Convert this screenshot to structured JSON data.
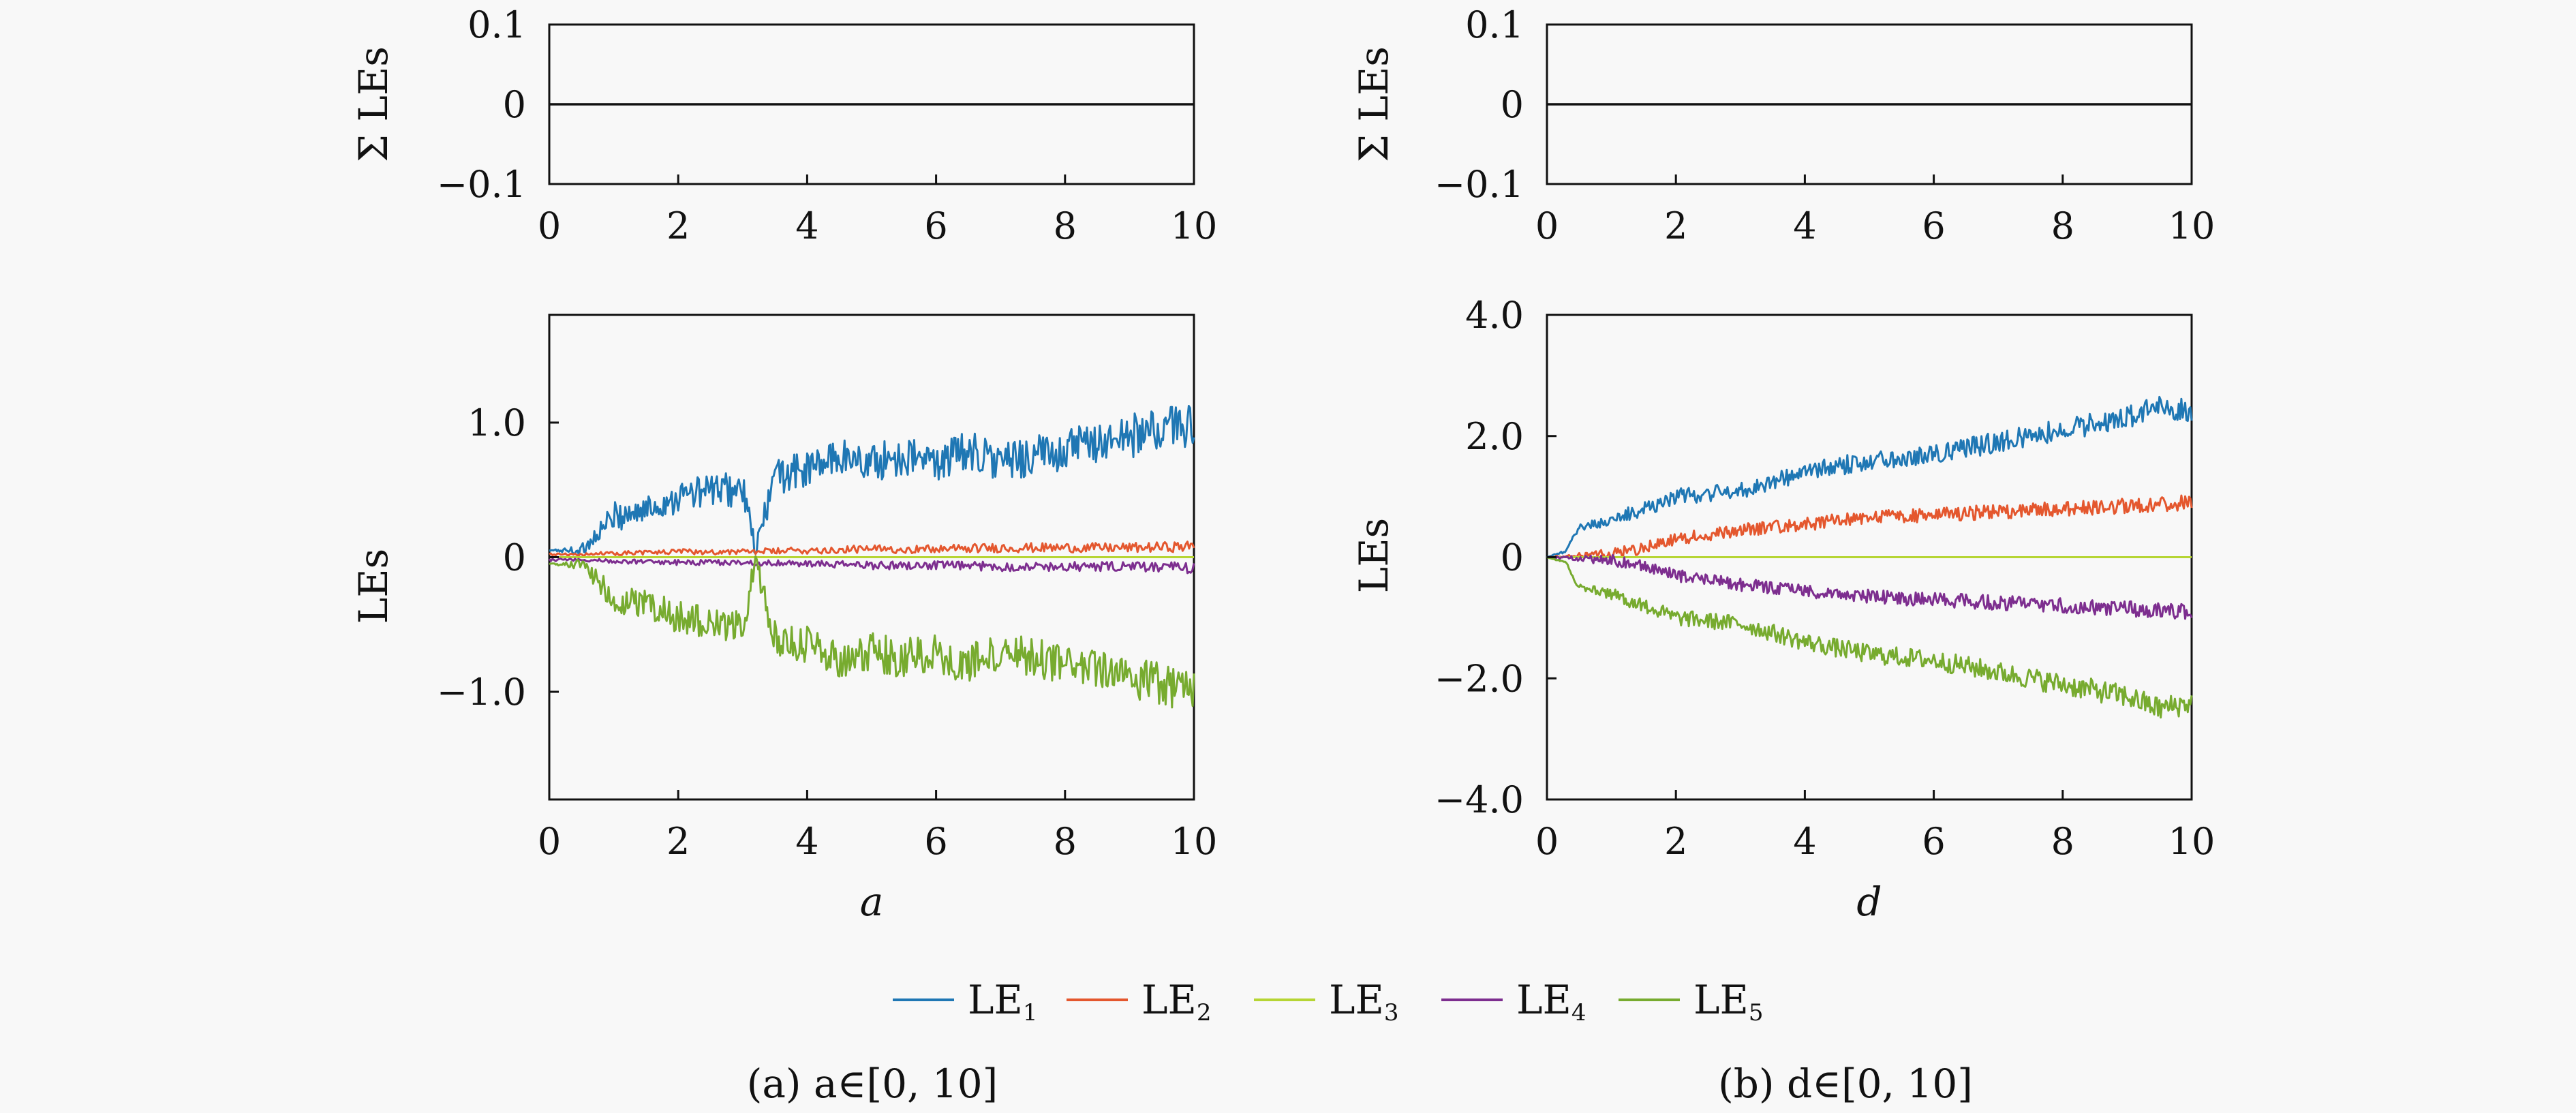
{
  "legend": {
    "items": [
      {
        "label": "LE",
        "sub": "1",
        "color": "#1f77b4"
      },
      {
        "label": "LE",
        "sub": "2",
        "color": "#e4572e"
      },
      {
        "label": "LE",
        "sub": "3",
        "color": "#b6d534"
      },
      {
        "label": "LE",
        "sub": "4",
        "color": "#7d2e8f"
      },
      {
        "label": "LE",
        "sub": "5",
        "color": "#77ab2f"
      }
    ]
  },
  "captions": {
    "a": "(a) a∈[0, 10]",
    "b": "(b) d∈[0, 10]"
  },
  "chart_data": [
    {
      "id": "a-sum",
      "type": "line",
      "ylabel": "Σ LEs",
      "xlabel": "",
      "xlim": [
        0,
        10
      ],
      "ylim": [
        -0.1,
        0.1
      ],
      "xticks": [
        0,
        2,
        4,
        6,
        8,
        10
      ],
      "yticks": [
        0.1,
        0,
        -0.1
      ],
      "ytick_labels": [
        "0.1",
        "0",
        "−0.1"
      ],
      "series": [
        {
          "x": [
            0,
            10
          ],
          "y": [
            0,
            0
          ],
          "color": "#111111"
        }
      ]
    },
    {
      "id": "a-les",
      "type": "line",
      "ylabel": "LEs",
      "xlabel": "a",
      "xlim": [
        0,
        10
      ],
      "ylim": [
        -1.8,
        1.8
      ],
      "xticks": [
        0,
        2,
        4,
        6,
        8,
        10
      ],
      "yticks": [
        1.0,
        0,
        -1.0
      ],
      "ytick_labels": [
        "1.0",
        "0",
        "−1.0"
      ],
      "series": [
        {
          "name": "LE1",
          "color": "#1f77b4",
          "x": [
            0,
            0.5,
            0.6,
            1.0,
            1.5,
            2.0,
            2.5,
            3.0,
            3.2,
            3.5,
            4.0,
            4.5,
            5.0,
            5.5,
            6.0,
            6.5,
            7.0,
            7.5,
            8.0,
            8.5,
            9.0,
            9.5,
            10
          ],
          "y": [
            0.05,
            0.05,
            0.1,
            0.3,
            0.35,
            0.45,
            0.5,
            0.5,
            0.05,
            0.6,
            0.65,
            0.75,
            0.7,
            0.75,
            0.7,
            0.8,
            0.7,
            0.75,
            0.8,
            0.85,
            0.9,
            0.95,
            1.0
          ]
        },
        {
          "name": "LE2",
          "color": "#e4572e",
          "x": [
            0,
            0.5,
            1,
            2,
            3,
            4,
            5,
            6,
            7,
            8,
            9,
            10
          ],
          "y": [
            0.02,
            0.02,
            0.03,
            0.04,
            0.04,
            0.05,
            0.06,
            0.06,
            0.07,
            0.07,
            0.07,
            0.08
          ]
        },
        {
          "name": "LE3",
          "color": "#b6d534",
          "x": [
            0,
            10
          ],
          "y": [
            0,
            0
          ]
        },
        {
          "name": "LE4",
          "color": "#7d2e8f",
          "x": [
            0,
            0.5,
            1,
            2,
            3,
            4,
            5,
            6,
            7,
            8,
            9,
            10
          ],
          "y": [
            -0.02,
            -0.02,
            -0.03,
            -0.04,
            -0.04,
            -0.05,
            -0.06,
            -0.06,
            -0.07,
            -0.07,
            -0.07,
            -0.08
          ]
        },
        {
          "name": "LE5",
          "color": "#77ab2f",
          "x": [
            0,
            0.5,
            0.6,
            1.0,
            1.5,
            2.0,
            2.5,
            3.0,
            3.2,
            3.5,
            4.0,
            4.5,
            5.0,
            5.5,
            6.0,
            6.5,
            7.0,
            7.5,
            8.0,
            8.5,
            9.0,
            9.5,
            10
          ],
          "y": [
            -0.05,
            -0.05,
            -0.1,
            -0.3,
            -0.35,
            -0.45,
            -0.5,
            -0.5,
            -0.05,
            -0.6,
            -0.65,
            -0.75,
            -0.7,
            -0.75,
            -0.7,
            -0.8,
            -0.7,
            -0.75,
            -0.8,
            -0.85,
            -0.9,
            -0.95,
            -1.0
          ]
        }
      ]
    },
    {
      "id": "b-sum",
      "type": "line",
      "ylabel": "Σ LEs",
      "xlabel": "",
      "xlim": [
        0,
        10
      ],
      "ylim": [
        -0.1,
        0.1
      ],
      "xticks": [
        0,
        2,
        4,
        6,
        8,
        10
      ],
      "yticks": [
        0.1,
        0,
        -0.1
      ],
      "ytick_labels": [
        "0.1",
        "0",
        "−0.1"
      ],
      "series": [
        {
          "x": [
            0,
            10
          ],
          "y": [
            0,
            0
          ],
          "color": "#111111"
        }
      ]
    },
    {
      "id": "b-les",
      "type": "line",
      "ylabel": "LEs",
      "xlabel": "d",
      "xlim": [
        0,
        10
      ],
      "ylim": [
        -4.0,
        4.0
      ],
      "xticks": [
        0,
        2,
        4,
        6,
        8,
        10
      ],
      "yticks": [
        4.0,
        2.0,
        0,
        -2.0,
        -4.0
      ],
      "ytick_labels": [
        "4.0",
        "2.0",
        "0",
        "−2.0",
        "−4.0"
      ],
      "series": [
        {
          "name": "LE1",
          "color": "#1f77b4",
          "x": [
            0,
            0.3,
            0.5,
            1.0,
            1.5,
            2.0,
            3.0,
            4.0,
            5.0,
            6.0,
            7.0,
            8.0,
            9.0,
            9.5,
            10
          ],
          "y": [
            0,
            0.1,
            0.5,
            0.6,
            0.8,
            1.0,
            1.1,
            1.4,
            1.6,
            1.7,
            1.9,
            2.1,
            2.3,
            2.5,
            2.4
          ]
        },
        {
          "name": "LE2",
          "color": "#e4572e",
          "x": [
            0,
            1.0,
            1.5,
            2.0,
            3.0,
            4.0,
            5.0,
            6.0,
            7.0,
            8.0,
            9.0,
            10
          ],
          "y": [
            0,
            0.05,
            0.15,
            0.3,
            0.45,
            0.55,
            0.65,
            0.7,
            0.75,
            0.8,
            0.85,
            0.9
          ]
        },
        {
          "name": "LE3",
          "color": "#b6d534",
          "x": [
            0,
            10
          ],
          "y": [
            0,
            0
          ]
        },
        {
          "name": "LE4",
          "color": "#7d2e8f",
          "x": [
            0,
            1.0,
            1.5,
            2.0,
            3.0,
            4.0,
            5.0,
            6.0,
            7.0,
            8.0,
            9.0,
            10
          ],
          "y": [
            0,
            -0.05,
            -0.15,
            -0.3,
            -0.45,
            -0.55,
            -0.65,
            -0.7,
            -0.75,
            -0.8,
            -0.85,
            -0.9
          ]
        },
        {
          "name": "LE5",
          "color": "#77ab2f",
          "x": [
            0,
            0.3,
            0.5,
            1.0,
            1.5,
            2.0,
            3.0,
            4.0,
            5.0,
            6.0,
            7.0,
            8.0,
            9.0,
            9.5,
            10
          ],
          "y": [
            0,
            -0.1,
            -0.5,
            -0.6,
            -0.8,
            -1.0,
            -1.1,
            -1.4,
            -1.6,
            -1.7,
            -1.9,
            -2.1,
            -2.3,
            -2.5,
            -2.4
          ]
        }
      ]
    }
  ]
}
